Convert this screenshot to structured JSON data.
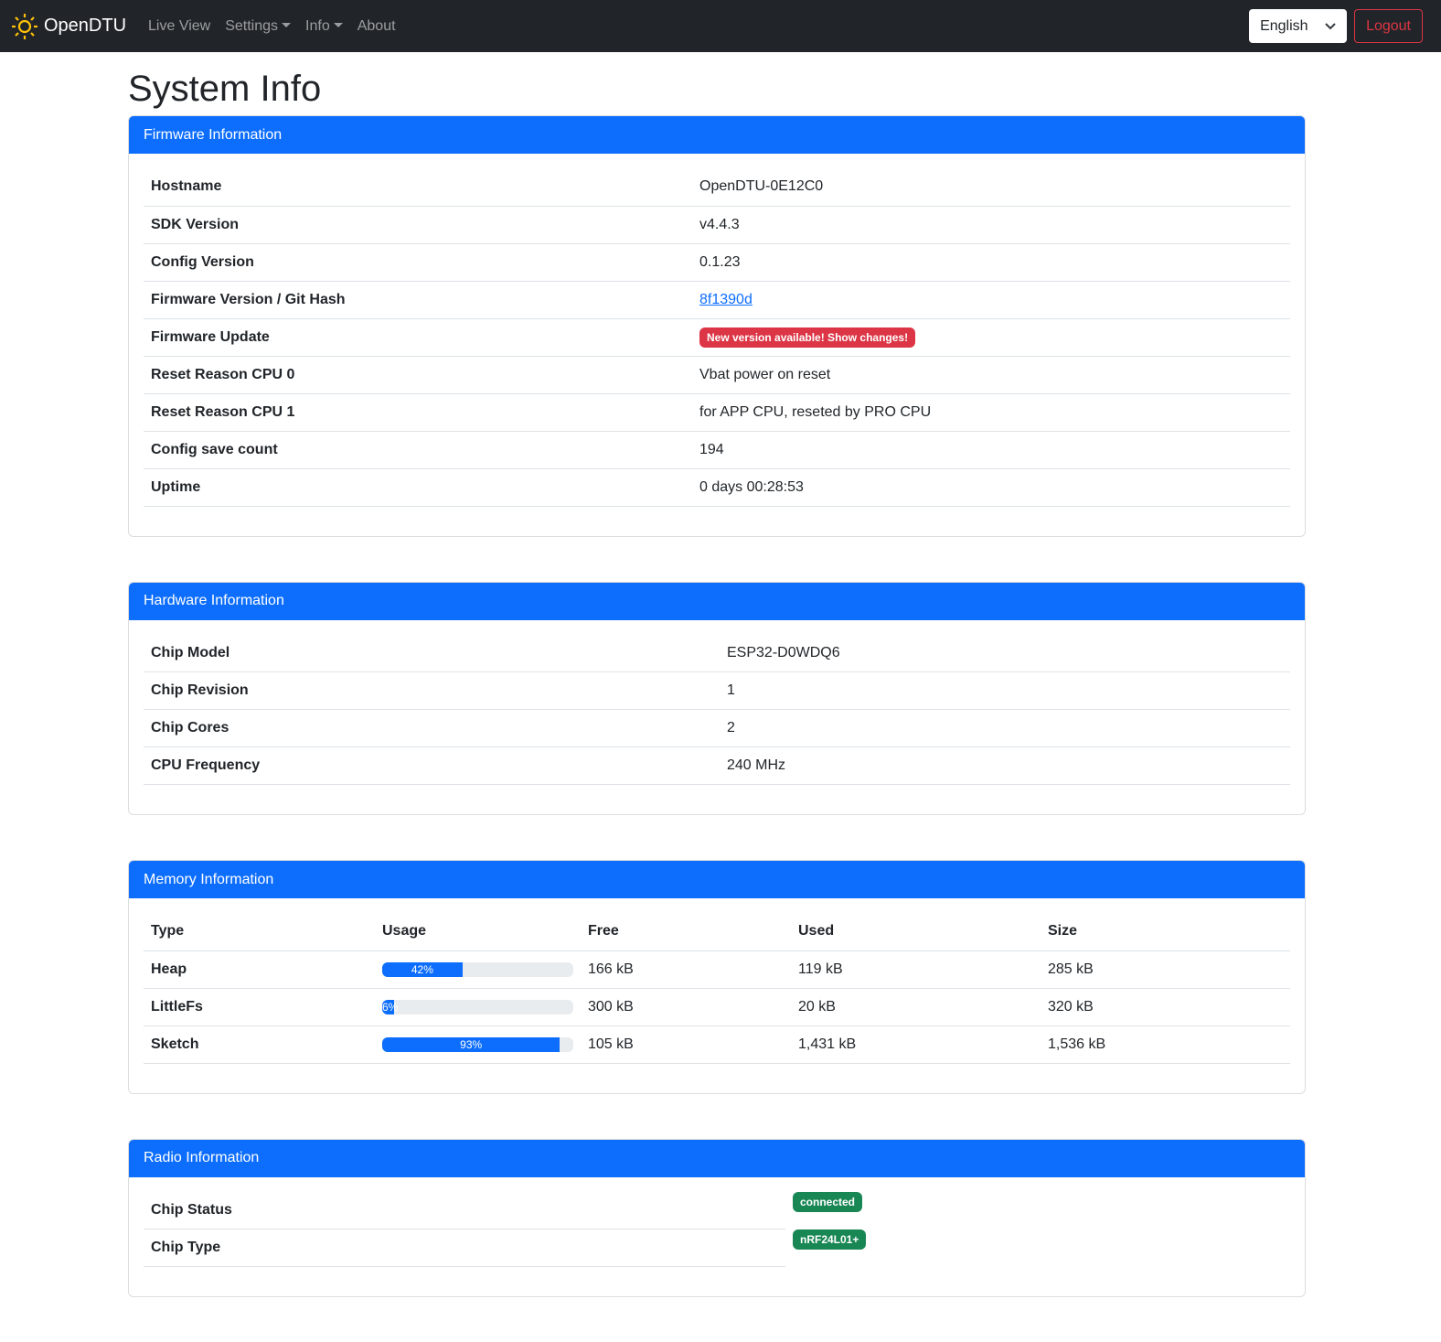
{
  "nav": {
    "brand": "OpenDTU",
    "items": [
      "Live View",
      "Settings",
      "Info",
      "About"
    ],
    "language": "English",
    "logout": "Logout"
  },
  "page_title": "System Info",
  "firmware": {
    "title": "Firmware Information",
    "rows": [
      [
        "Hostname",
        "OpenDTU-0E12C0"
      ],
      [
        "SDK Version",
        "v4.4.3"
      ],
      [
        "Config Version",
        "0.1.23"
      ],
      [
        "Firmware Version / Git Hash",
        "8f1390d"
      ],
      [
        "Firmware Update",
        "New version available! Show changes!"
      ],
      [
        "Reset Reason CPU 0",
        "Vbat power on reset"
      ],
      [
        "Reset Reason CPU 1",
        "for APP CPU, reseted by PRO CPU"
      ],
      [
        "Config save count",
        "194"
      ],
      [
        "Uptime",
        "0 days 00:28:53"
      ]
    ]
  },
  "hardware": {
    "title": "Hardware Information",
    "rows": [
      [
        "Chip Model",
        "ESP32-D0WDQ6"
      ],
      [
        "Chip Revision",
        "1"
      ],
      [
        "Chip Cores",
        "2"
      ],
      [
        "CPU Frequency",
        "240 MHz"
      ]
    ]
  },
  "memory": {
    "title": "Memory Information",
    "headers": [
      "Type",
      "Usage",
      "Free",
      "Used",
      "Size"
    ],
    "rows": [
      {
        "type": "Heap",
        "usage": 42,
        "usage_label": "42%",
        "free": "166 kB",
        "used": "119 kB",
        "size": "285 kB"
      },
      {
        "type": "LittleFs",
        "usage": 6,
        "usage_label": "6%",
        "free": "300 kB",
        "used": "20 kB",
        "size": "320 kB"
      },
      {
        "type": "Sketch",
        "usage": 93,
        "usage_label": "93%",
        "free": "105 kB",
        "used": "1,431 kB",
        "size": "1,536 kB"
      }
    ]
  },
  "radio": {
    "title": "Radio Information",
    "rows": [
      [
        "Chip Status",
        "connected"
      ],
      [
        "Chip Type",
        "nRF24L01+"
      ]
    ]
  },
  "colors": {
    "primary": "#0d6efd",
    "danger": "#dc3545",
    "success": "#198754",
    "navbar": "#212529"
  }
}
